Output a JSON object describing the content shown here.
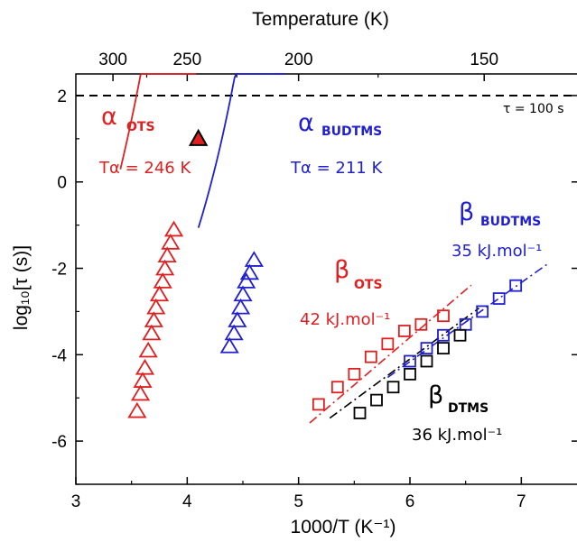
{
  "chart_data": {
    "type": "scatter",
    "xlabel": "1000/T (K⁻¹)",
    "ylabel": "log₁₀[τ (s)]",
    "top_xlabel": "Temperature (K)",
    "xlim": [
      3,
      7.5
    ],
    "ylim": [
      -7,
      2.5
    ],
    "x_ticks": [
      3,
      4,
      5,
      6,
      7
    ],
    "y_ticks": [
      -6,
      -4,
      -2,
      0,
      2
    ],
    "top_ticks": [
      300,
      250,
      200,
      150
    ],
    "reference_line": {
      "y": 2,
      "label": "τ = 100 s",
      "color": "#000000"
    },
    "series": [
      {
        "name": "α OTS",
        "marker": "triangle",
        "color": "#e02020",
        "x": [
          3.55,
          3.58,
          3.6,
          3.62,
          3.65,
          3.68,
          3.7,
          3.72,
          3.75,
          3.78,
          3.8,
          3.82,
          3.85,
          3.88
        ],
        "y": [
          -5.3,
          -4.9,
          -4.6,
          -4.3,
          -3.9,
          -3.5,
          -3.2,
          -2.9,
          -2.6,
          -2.3,
          -2.0,
          -1.7,
          -1.4,
          -1.1
        ],
        "fit": {
          "kind": "vft",
          "x_from": 3.4,
          "x_to": 4.08,
          "A": -12.01,
          "B": 1212,
          "T0": 195.6
        }
      },
      {
        "name": "α BUDTMS",
        "marker": "triangle",
        "color": "#2020d0",
        "x": [
          4.38,
          4.42,
          4.45,
          4.48,
          4.5,
          4.53,
          4.56,
          4.6
        ],
        "y": [
          -3.8,
          -3.5,
          -3.2,
          -2.9,
          -2.6,
          -2.3,
          -2.1,
          -1.8
        ],
        "fit": {
          "kind": "vft",
          "x_from": 4.1,
          "x_to": 4.88,
          "A": -10.05,
          "B": 577,
          "T0": 179.7
        }
      },
      {
        "name": "β OTS",
        "marker": "square",
        "color": "#e02020",
        "x": [
          5.18,
          5.35,
          5.5,
          5.65,
          5.8,
          5.95,
          6.1,
          6.3
        ],
        "y": [
          -5.15,
          -4.75,
          -4.45,
          -4.05,
          -3.75,
          -3.45,
          -3.3,
          -3.1
        ],
        "fit": {
          "kind": "line",
          "x_from": 5.1,
          "x_to": 6.55,
          "slope": 2.2,
          "intercept": -16.8
        }
      },
      {
        "name": "β BUDTMS",
        "marker": "square",
        "color": "#2020d0",
        "x": [
          6.0,
          6.15,
          6.3,
          6.5,
          6.65,
          6.8,
          6.95
        ],
        "y": [
          -4.15,
          -3.85,
          -3.55,
          -3.3,
          -3.0,
          -2.7,
          -2.4
        ],
        "fit": {
          "kind": "line",
          "x_from": 5.8,
          "x_to": 7.25,
          "slope": 1.83,
          "intercept": -15.14
        }
      },
      {
        "name": "β DTMS",
        "marker": "square",
        "color": "#000000",
        "x": [
          5.55,
          5.7,
          5.85,
          6.0,
          6.15,
          6.3,
          6.45
        ],
        "y": [
          -5.35,
          -5.05,
          -4.75,
          -4.45,
          -4.15,
          -3.85,
          -3.55
        ],
        "fit": {
          "kind": "line",
          "x_from": 5.28,
          "x_to": 6.62,
          "slope": 1.9,
          "intercept": -15.5
        }
      }
    ],
    "extra_points": [
      {
        "name": "α OTS",
        "marker": "filled-triangle",
        "color": "#e02020",
        "x": 4.1,
        "y": 1.0
      }
    ],
    "annotations": [
      {
        "id": "alpha-ots",
        "symbol": "α",
        "sub": "OTS",
        "line2": "Tα = 246 K",
        "color": "#e02020"
      },
      {
        "id": "alpha-budtms",
        "symbol": "α",
        "sub": "BUDTMS",
        "line2": "Tα = 211 K",
        "color": "#2020d0"
      },
      {
        "id": "beta-ots",
        "symbol": "β",
        "sub": "OTS",
        "line2": "42 kJ.mol⁻¹",
        "color": "#e02020"
      },
      {
        "id": "beta-budtms",
        "symbol": "β",
        "sub": "BUDTMS",
        "line2": "35 kJ.mol⁻¹",
        "color": "#2020d0"
      },
      {
        "id": "beta-dtms",
        "symbol": "β",
        "sub": "DTMS",
        "line2": "36 kJ.mol⁻¹",
        "color": "#000000"
      }
    ]
  }
}
